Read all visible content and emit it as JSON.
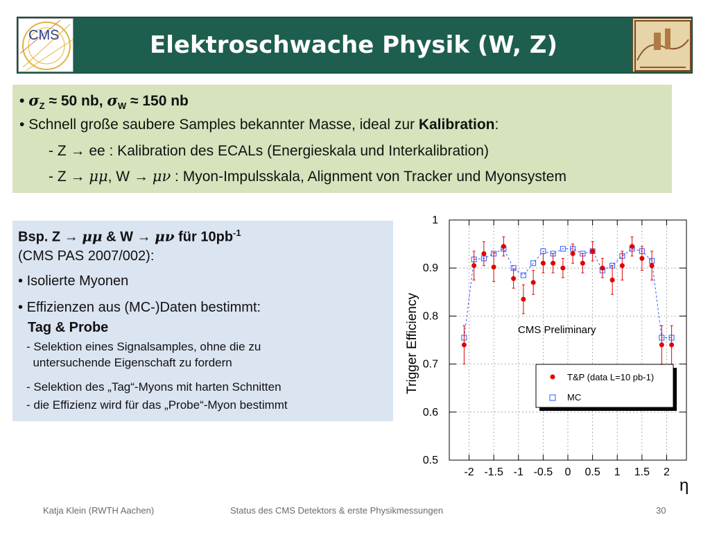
{
  "header": {
    "logo_text": "CMS",
    "title": "Elektroschwache Physik (W, Z)"
  },
  "intro": {
    "bullet1_sigma": "σ",
    "bullet1_z_sub": "Z",
    "bullet1_approx": "≈",
    "bullet1_z_value": "50 nb,",
    "bullet1_w_sub": "W",
    "bullet1_w_value": "150 nb",
    "bullet2_text": "Schnell große saubere Samples bekannter Masse, ideal zur ",
    "bullet2_bold": "Kalibration",
    "bullet2_end": ":",
    "sub1": "- Z → ee : Kalibration des ECALs (Energieskala und Interkalibration)",
    "sub2_a": "- Z → ",
    "sub2_mumu": "μμ",
    "sub2_b": ", W → ",
    "sub2_munu": "μν",
    "sub2_c": " : Myon-Impulsskala, Alignment von Tracker und Myonsystem"
  },
  "example": {
    "line1_a": "Bsp. Z → ",
    "line1_mumu": "μμ",
    "line1_b": " & W → ",
    "line1_munu": "μν",
    "line1_c": "  für 10pb",
    "line1_sup": "-1",
    "line2": "(CMS PAS 2007/002):",
    "bullet1": "Isolierte Myonen",
    "bullet2": "Effizienzen aus (MC-)Daten bestimmt:",
    "tag_probe": "Tag & Probe",
    "dash1a": "- Selektion eines Signalsamples, ohne die zu",
    "dash1b": "  untersuchende Eigenschaft zu fordern",
    "dash2": "- Selektion des „Tag“-Myons mit harten Schnitten",
    "dash3": "- die Effizienz wird für das „Probe“-Myon bestimmt"
  },
  "footer": {
    "author": "Katja Klein (RWTH Aachen)",
    "talk": "Status des CMS Detektors & erste Physikmessungen",
    "page": "30"
  },
  "chart_data": {
    "type": "scatter",
    "ylabel": "Trigger Efficiency",
    "xlabel": "η",
    "annotation": "CMS Preliminary",
    "xlim": [
      -2.4,
      2.4
    ],
    "ylim": [
      0.5,
      1.0
    ],
    "x_ticks": [
      -2,
      -1.5,
      -1,
      -0.5,
      0,
      0.5,
      1,
      1.5,
      2
    ],
    "x_tick_labels": [
      "-2",
      "-1.5",
      "-1",
      "-0.5",
      "0",
      "0.5",
      "1",
      "1.5",
      "2"
    ],
    "y_ticks": [
      0.5,
      0.6,
      0.7,
      0.8,
      0.9,
      1.0
    ],
    "y_tick_labels": [
      "0.5",
      "0.6",
      "0.7",
      "0.8",
      "0.9",
      "1"
    ],
    "grid": true,
    "legend_position": "bottom-right",
    "x": [
      -2.1,
      -1.9,
      -1.7,
      -1.5,
      -1.3,
      -1.1,
      -0.9,
      -0.7,
      -0.5,
      -0.3,
      -0.1,
      0.1,
      0.3,
      0.5,
      0.7,
      0.9,
      1.1,
      1.3,
      1.5,
      1.7,
      1.9,
      2.1
    ],
    "series": [
      {
        "name": "T&P (data L=10 pb-1)",
        "color": "#e00000",
        "marker": "circle",
        "values": [
          0.74,
          0.905,
          0.93,
          0.902,
          0.945,
          0.878,
          0.835,
          0.87,
          0.91,
          0.91,
          0.9,
          0.93,
          0.91,
          0.935,
          0.9,
          0.875,
          0.905,
          0.945,
          0.92,
          0.905,
          0.74,
          0.74
        ],
        "errors": [
          0.04,
          0.03,
          0.025,
          0.03,
          0.02,
          0.02,
          0.03,
          0.025,
          0.02,
          0.02,
          0.02,
          0.02,
          0.02,
          0.02,
          0.02,
          0.03,
          0.03,
          0.02,
          0.025,
          0.03,
          0.04,
          0.04
        ]
      },
      {
        "name": "MC",
        "color": "#3355ff",
        "marker": "open-square",
        "values": [
          0.755,
          0.918,
          0.92,
          0.93,
          0.94,
          0.9,
          0.885,
          0.91,
          0.935,
          0.93,
          0.94,
          0.94,
          0.93,
          0.935,
          0.895,
          0.905,
          0.925,
          0.94,
          0.935,
          0.915,
          0.755,
          0.755
        ]
      }
    ]
  }
}
